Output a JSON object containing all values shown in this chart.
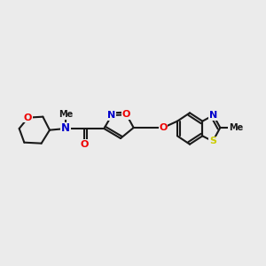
{
  "background_color": "#ebebeb",
  "atom_colors": {
    "C": "#1a1a1a",
    "N": "#0000cc",
    "O": "#ee0000",
    "S": "#cccc00"
  },
  "figsize": [
    3.0,
    3.0
  ],
  "dpi": 100
}
